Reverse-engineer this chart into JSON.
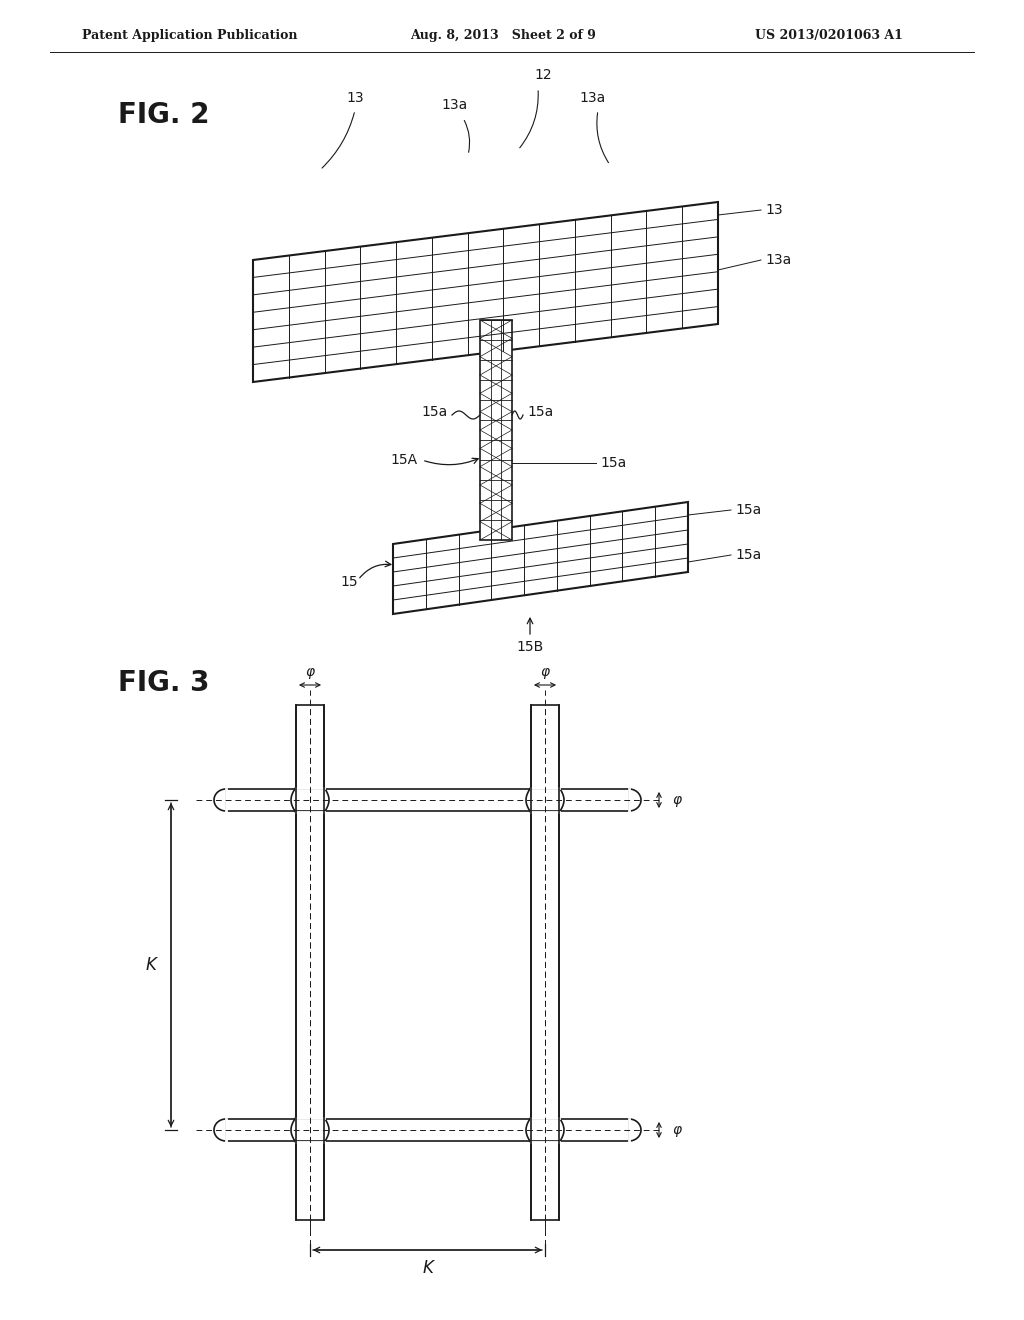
{
  "bg_color": "#ffffff",
  "header_left": "Patent Application Publication",
  "header_center": "Aug. 8, 2013   Sheet 2 of 9",
  "header_right": "US 2013/0201063 A1",
  "fig2_label": "FIG. 2",
  "fig3_label": "FIG. 3",
  "lc": "#1a1a1a"
}
